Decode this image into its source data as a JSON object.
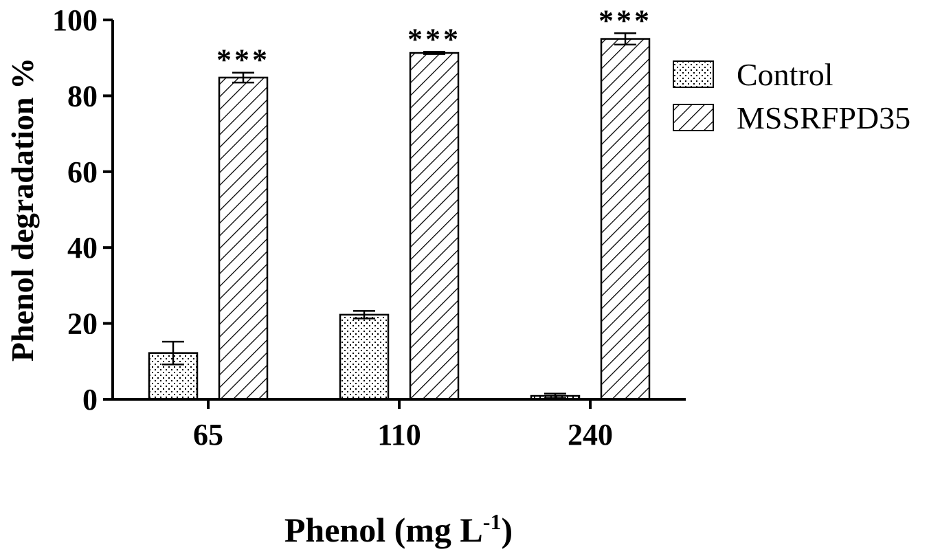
{
  "chart_data": {
    "type": "bar",
    "title": "",
    "ylabel": "Phenol degradation %",
    "xlabel": {
      "main": "Phenol (mg L",
      "superscript": "-1",
      "suffix": ")"
    },
    "categories": [
      "65",
      "110",
      "240"
    ],
    "ylim": [
      0,
      100
    ],
    "yticks": [
      "0",
      "20",
      "40",
      "60",
      "80",
      "100"
    ],
    "series": [
      {
        "name": "Control",
        "pattern": "dots",
        "values": [
          12.2,
          22.3,
          0.9
        ],
        "errors": [
          3.0,
          1.0,
          0.6
        ],
        "significance": [
          "",
          "",
          ""
        ]
      },
      {
        "name": "MSSRFPD35",
        "pattern": "diagonal-hatch",
        "values": [
          84.8,
          91.3,
          95.0
        ],
        "errors": [
          1.3,
          0.3,
          1.5
        ],
        "significance": [
          "***",
          "***",
          "***"
        ]
      }
    ],
    "legend_position": "right",
    "grid": false,
    "colors": {
      "stroke": "#000000",
      "fill": "#ffffff"
    }
  }
}
